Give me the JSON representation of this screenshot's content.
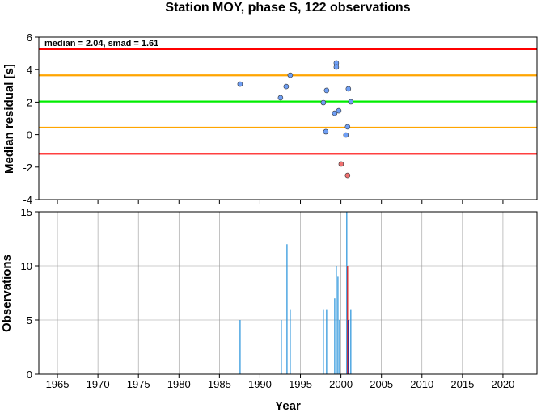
{
  "chart_data": [
    {
      "type": "scatter",
      "title": "Station MOY, phase S, 122 observations",
      "annotation": "median = 2.04, smad = 1.61",
      "ylabel": "Median residual [s]",
      "xlim": [
        1962.7,
        2024.2
      ],
      "xticks": [
        1965,
        1970,
        1975,
        1980,
        1985,
        1990,
        1995,
        2000,
        2005,
        2010,
        2015,
        2020
      ],
      "ylim": [
        -4,
        6
      ],
      "yticks": [
        -4,
        -2,
        0,
        2,
        4,
        6
      ],
      "grid": false,
      "reference_lines": [
        {
          "value": 5.26,
          "color": "#ff0000"
        },
        {
          "value": 3.65,
          "color": "#ffa500"
        },
        {
          "value": 2.04,
          "color": "#00ee00"
        },
        {
          "value": 0.43,
          "color": "#ffa500"
        },
        {
          "value": -1.18,
          "color": "#ff0000"
        }
      ],
      "series": [
        {
          "color": "#6f9ff5",
          "x": [
            1987.55,
            1993.24,
            1993.74,
            1992.54,
            1997.83,
            1998.23,
            1998.13,
            1999.23,
            1999.73,
            1999.43,
            1999.43,
            2000.92,
            2001.22,
            2000.82,
            2000.62
          ],
          "values": [
            3.11,
            2.96,
            3.66,
            2.27,
            1.97,
            2.72,
            0.18,
            1.32,
            1.47,
            4.41,
            4.16,
            2.82,
            2.02,
            0.48,
            -0.02
          ]
        },
        {
          "color": "#f07070",
          "x": [
            2000.03,
            2000.82
          ],
          "values": [
            -1.81,
            -2.51
          ]
        }
      ]
    },
    {
      "type": "bar",
      "xlabel": "Year",
      "ylabel": "Observations",
      "xlim": [
        1962.7,
        2024.2
      ],
      "xticks": [
        1965,
        1970,
        1975,
        1980,
        1985,
        1990,
        1995,
        2000,
        2005,
        2010,
        2015,
        2020
      ],
      "ylim": [
        0,
        15
      ],
      "yticks": [
        0,
        5,
        10,
        15
      ],
      "grid": true,
      "series": [
        {
          "color": "#3399dd",
          "x": [
            1987.55,
            1992.64,
            1993.34,
            1993.74,
            1997.83,
            1998.23,
            1999.23,
            1999.43,
            1999.63,
            1999.83,
            2000.72,
            2001.22
          ],
          "values": [
            5,
            5,
            12,
            6,
            6,
            6,
            7,
            10,
            9,
            5,
            15,
            6
          ]
        },
        {
          "color": "#dd2222",
          "x": [
            2000.82
          ],
          "values": [
            10
          ]
        },
        {
          "color": "#2233aa",
          "x": [
            2000.92
          ],
          "values": [
            5
          ]
        }
      ]
    }
  ]
}
